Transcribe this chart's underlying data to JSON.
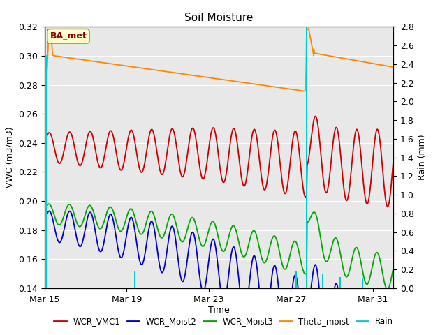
{
  "title": "Soil Moisture",
  "xlabel": "Time",
  "ylabel_left": "VWC (m3/m3)",
  "ylabel_right": "Rain (mm)",
  "xlim_days": [
    0,
    17
  ],
  "ylim_left": [
    0.14,
    0.32
  ],
  "ylim_right": [
    0.0,
    2.8
  ],
  "x_tick_labels": [
    "Mar 15",
    "Mar 19",
    "Mar 23",
    "Mar 27",
    "Mar 31"
  ],
  "x_tick_positions": [
    0,
    4,
    8,
    12,
    16
  ],
  "background_color": "#ffffff",
  "plot_bg_color": "#e8e8e8",
  "annotation_label": "BA_met",
  "colors": {
    "WCR_VMC1": "#cc0000",
    "WCR_Moist2": "#0000cc",
    "WCR_Moist3": "#00aa00",
    "Theta_moist": "#ff8800",
    "Rain": "#00cccc"
  },
  "rain_events": [
    [
      0.05,
      2.5
    ],
    [
      4.4,
      0.18
    ],
    [
      12.25,
      0.18
    ],
    [
      12.78,
      2.8
    ],
    [
      13.55,
      0.15
    ],
    [
      14.4,
      0.12
    ],
    [
      15.5,
      0.1
    ]
  ],
  "cyan_vline_x": [
    0.05,
    12.78
  ],
  "event_day": 12.78,
  "total_days": 17
}
